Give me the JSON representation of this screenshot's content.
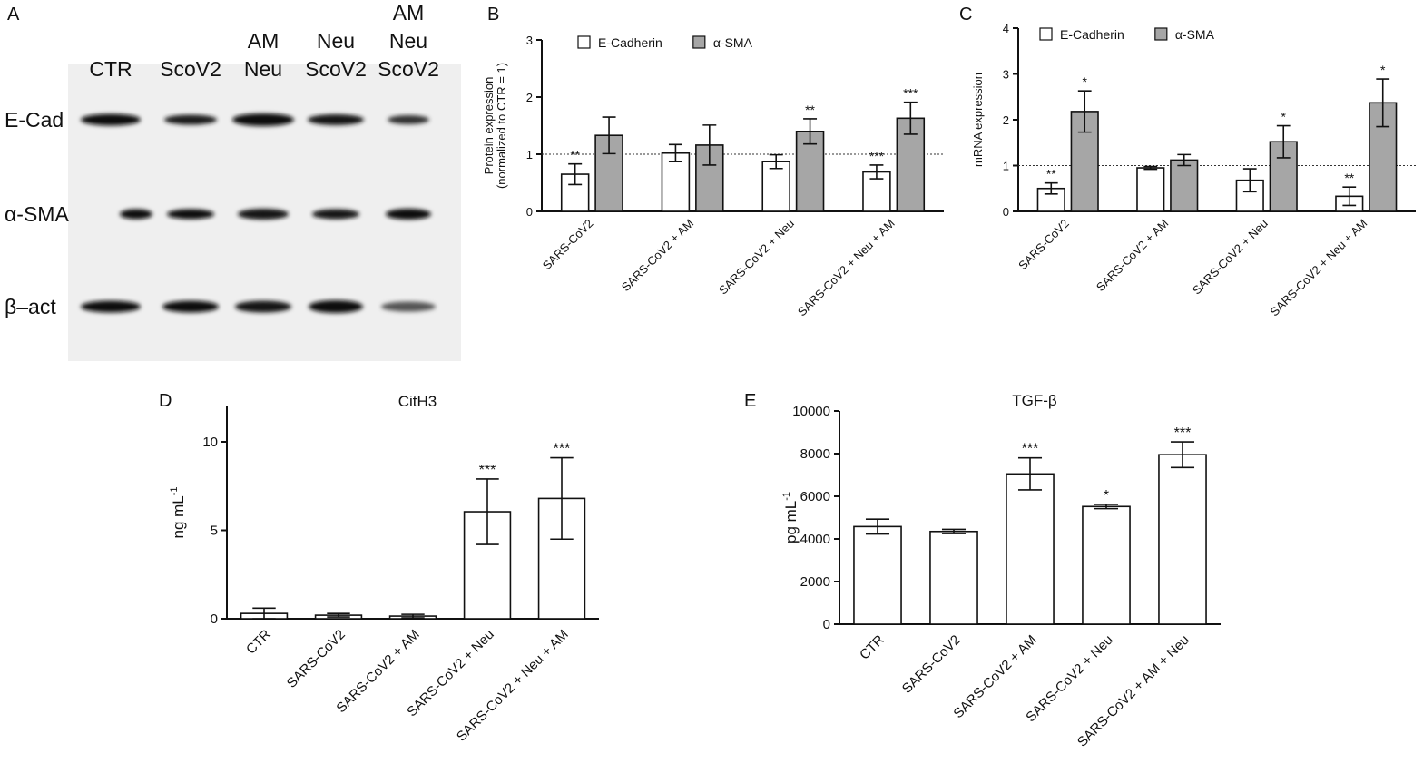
{
  "panels": [
    "A",
    "B",
    "C",
    "D",
    "E"
  ],
  "blot": {
    "lanes": [
      [
        "CTR"
      ],
      [
        "ScoV2"
      ],
      [
        "AM",
        "Neu"
      ],
      [
        "Neu",
        "ScoV2"
      ],
      [
        "AM",
        "Neu",
        "ScoV2"
      ]
    ],
    "rows": [
      "E-Cad",
      "α-SMA",
      "β–act"
    ]
  },
  "chart_data": [
    {
      "type": "bar",
      "ylabel": [
        "Protein expression",
        "(normalized to CTR = 1)"
      ],
      "categories": [
        "SARS-CoV2",
        "SARS-CoV2 + AM",
        "SARS-CoV2 + Neu",
        "SARS-CoV2 + Neu + AM"
      ],
      "series": [
        {
          "name": "E-Cadherin",
          "color": "#ffffff",
          "values": [
            0.65,
            1.02,
            0.87,
            0.69
          ],
          "errors": [
            0.18,
            0.15,
            0.12,
            0.12
          ],
          "significance": [
            "**",
            null,
            null,
            "***"
          ]
        },
        {
          "name": "α-SMA",
          "color": "#a6a6a6",
          "values": [
            1.33,
            1.16,
            1.4,
            1.63
          ],
          "errors": [
            0.32,
            0.35,
            0.22,
            0.28
          ],
          "significance": [
            null,
            null,
            "**",
            "***"
          ]
        }
      ],
      "reference_line": 1,
      "ylim": [
        0,
        3
      ],
      "yticks": [
        0,
        1,
        2,
        3
      ]
    },
    {
      "type": "bar",
      "ylabel": [
        "mRNA expression"
      ],
      "categories": [
        "SARS-CoV2",
        "SARS-CoV2 + AM",
        "SARS-CoV2 + Neu",
        "SARS-CoV2 + Neu + AM"
      ],
      "series": [
        {
          "name": "E-Cadherin",
          "color": "#ffffff",
          "values": [
            0.5,
            0.95,
            0.68,
            0.33
          ],
          "errors": [
            0.12,
            0.03,
            0.25,
            0.2
          ],
          "significance": [
            "**",
            null,
            null,
            "**"
          ]
        },
        {
          "name": "α-SMA",
          "color": "#a6a6a6",
          "values": [
            2.18,
            1.12,
            1.52,
            2.37
          ],
          "errors": [
            0.45,
            0.12,
            0.35,
            0.52
          ],
          "significance": [
            "*",
            null,
            "*",
            "*"
          ]
        }
      ],
      "reference_line": 1,
      "ylim": [
        0,
        4
      ],
      "yticks": [
        0,
        1,
        2,
        3,
        4
      ]
    },
    {
      "type": "bar",
      "title": "CitH3",
      "ylabel": [
        "ng mL",
        "-1"
      ],
      "categories": [
        "CTR",
        "SARS-CoV2",
        "SARS-CoV2 + AM",
        "SARS-CoV2 + Neu",
        "SARS-CoV2 + Neu + AM"
      ],
      "series": [
        {
          "color": "#ffffff",
          "values": [
            0.3,
            0.2,
            0.15,
            6.05,
            6.8
          ],
          "errors": [
            0.3,
            0.1,
            0.1,
            1.85,
            2.3
          ],
          "significance": [
            null,
            null,
            null,
            "***",
            "***"
          ]
        }
      ],
      "ylim": [
        0,
        12
      ],
      "yticks": [
        0,
        5,
        10
      ]
    },
    {
      "type": "bar",
      "title": "TGF-β",
      "ylabel": [
        "pg mL",
        "-1"
      ],
      "categories": [
        "CTR",
        "SARS-CoV2",
        "SARS-CoV2 + AM",
        "SARS-CoV2 + Neu",
        "SARS-CoV2 + AM + Neu"
      ],
      "series": [
        {
          "color": "#ffffff",
          "values": [
            4580,
            4350,
            7050,
            5520,
            7950
          ],
          "errors": [
            350,
            100,
            750,
            100,
            600
          ],
          "significance": [
            null,
            null,
            "***",
            "*",
            "***"
          ]
        }
      ],
      "ylim": [
        0,
        10000
      ],
      "yticks": [
        0,
        2000,
        4000,
        6000,
        8000,
        10000
      ]
    }
  ]
}
